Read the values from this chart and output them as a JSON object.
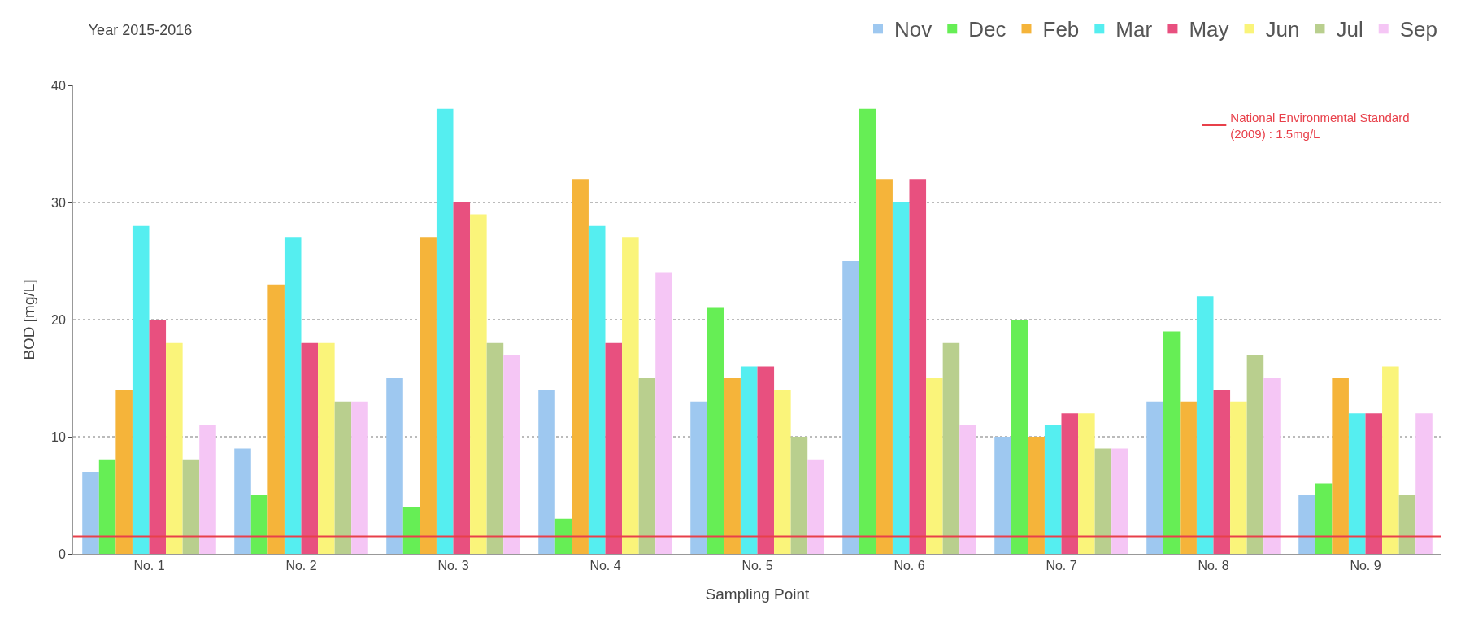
{
  "chart_data": {
    "type": "bar",
    "title": "Year 2015-2016",
    "xlabel": "Sampling Point",
    "ylabel": "BOD [mg/L]",
    "categories": [
      "No. 1",
      "No. 2",
      "No. 3",
      "No. 4",
      "No. 5",
      "No. 6",
      "No. 7",
      "No. 8",
      "No. 9"
    ],
    "series": [
      {
        "name": "Nov",
        "color": "#9ec8f0",
        "values": [
          7,
          9,
          15,
          14,
          13,
          25,
          10,
          13,
          5
        ]
      },
      {
        "name": "Dec",
        "color": "#66ee55",
        "values": [
          8,
          5,
          4,
          3,
          21,
          38,
          20,
          19,
          6
        ]
      },
      {
        "name": "Feb",
        "color": "#f5b43a",
        "values": [
          14,
          23,
          27,
          32,
          15,
          32,
          10,
          13,
          15
        ]
      },
      {
        "name": "Mar",
        "color": "#55eef0",
        "values": [
          28,
          27,
          38,
          28,
          16,
          30,
          11,
          22,
          12
        ]
      },
      {
        "name": "May",
        "color": "#e8507f",
        "values": [
          20,
          18,
          30,
          18,
          16,
          32,
          12,
          14,
          12
        ]
      },
      {
        "name": "Jun",
        "color": "#faf47a",
        "values": [
          18,
          18,
          29,
          27,
          14,
          15,
          12,
          13,
          16
        ]
      },
      {
        "name": "Jul",
        "color": "#b9cf8e",
        "values": [
          8,
          13,
          18,
          15,
          10,
          18,
          9,
          17,
          5
        ]
      },
      {
        "name": "Sep",
        "color": "#f5c6f5",
        "values": [
          11,
          13,
          17,
          24,
          8,
          11,
          9,
          15,
          12
        ]
      }
    ],
    "ylim": [
      0,
      40
    ],
    "yticks": [
      0,
      10,
      20,
      30,
      40
    ],
    "grid": "y",
    "legend": "top right",
    "ref_lines": [
      {
        "axis": "y",
        "value": 1.5,
        "label": "National Environmental Standard\n(2009) : 1.5mg/L",
        "color": "#e8404a"
      }
    ]
  }
}
